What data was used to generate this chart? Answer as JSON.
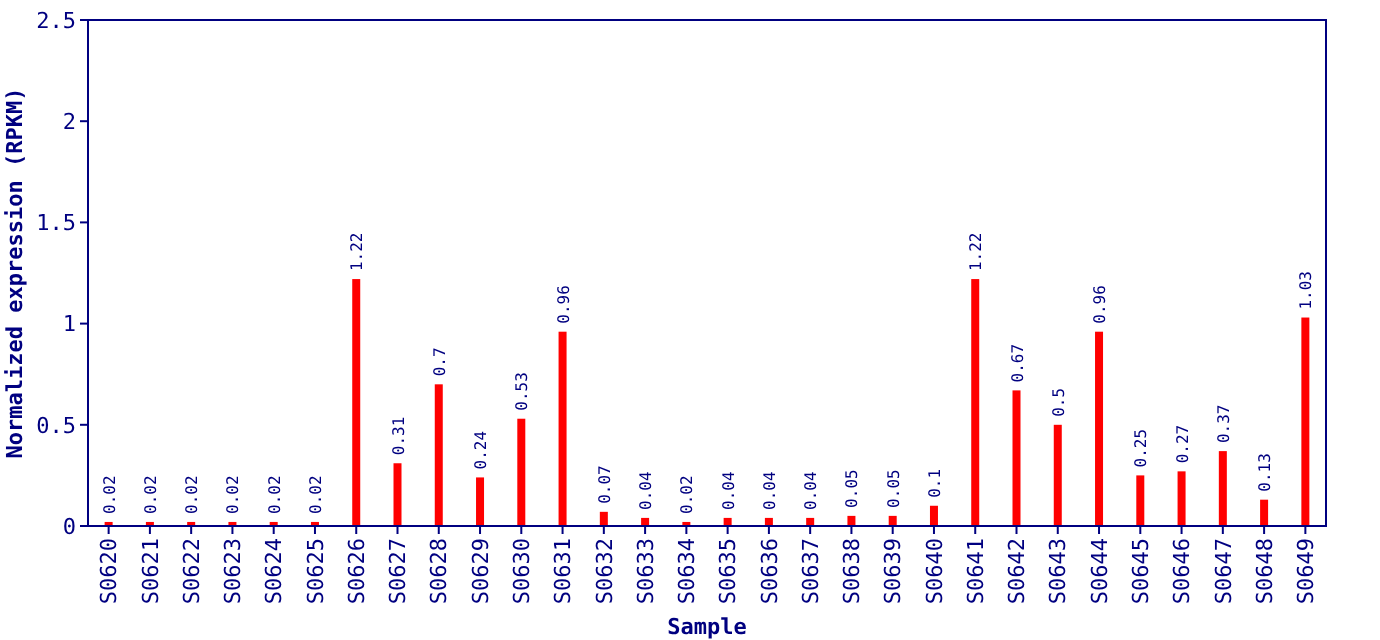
{
  "chart_data": {
    "type": "bar",
    "xlabel": "Sample",
    "ylabel": "Normalized expression (RPKM)",
    "categories": [
      "S0620",
      "S0621",
      "S0622",
      "S0623",
      "S0624",
      "S0625",
      "S0626",
      "S0627",
      "S0628",
      "S0629",
      "S0630",
      "S0631",
      "S0632",
      "S0633",
      "S0634",
      "S0635",
      "S0636",
      "S0637",
      "S0638",
      "S0639",
      "S0640",
      "S0641",
      "S0642",
      "S0643",
      "S0644",
      "S0645",
      "S0646",
      "S0647",
      "S0648",
      "S0649"
    ],
    "values": [
      0.02,
      0.02,
      0.02,
      0.02,
      0.02,
      0.02,
      1.22,
      0.31,
      0.7,
      0.24,
      0.53,
      0.96,
      0.07,
      0.04,
      0.02,
      0.04,
      0.04,
      0.04,
      0.05,
      0.05,
      0.1,
      1.22,
      0.67,
      0.5,
      0.96,
      0.25,
      0.27,
      0.37,
      0.13,
      1.03
    ],
    "color": "#ff0000",
    "ylim": [
      0,
      2.5
    ],
    "yticks": [
      0,
      0.5,
      1,
      1.5,
      2,
      2.5
    ],
    "data_labels": true
  }
}
